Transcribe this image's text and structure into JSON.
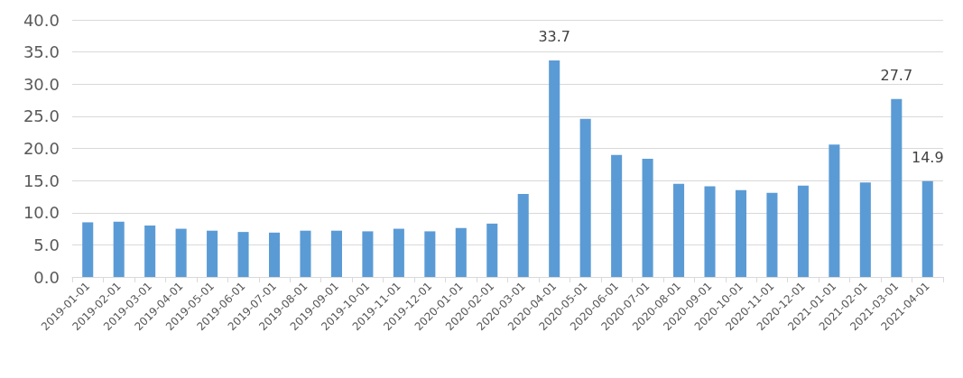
{
  "chart_data": {
    "type": "bar",
    "categories": [
      "2019-01-01",
      "2019-02-01",
      "2019-03-01",
      "2019-04-01",
      "2019-05-01",
      "2019-06-01",
      "2019-07-01",
      "2019-08-01",
      "2019-09-01",
      "2019-10-01",
      "2019-11-01",
      "2019-12-01",
      "2020-01-01",
      "2020-02-01",
      "2020-03-01",
      "2020-04-01",
      "2020-05-01",
      "2020-06-01",
      "2020-07-01",
      "2020-08-01",
      "2020-09-01",
      "2020-10-01",
      "2020-11-01",
      "2020-12-01",
      "2021-01-01",
      "2021-02-01",
      "2021-03-01",
      "2021-04-01"
    ],
    "values": [
      8.5,
      8.6,
      8.0,
      7.5,
      7.2,
      7.0,
      6.9,
      7.2,
      7.2,
      7.1,
      7.5,
      7.1,
      7.6,
      8.3,
      12.9,
      33.7,
      24.6,
      19.0,
      18.4,
      14.5,
      14.1,
      13.5,
      13.1,
      14.2,
      20.6,
      14.7,
      27.7,
      14.9
    ],
    "value_labels": [
      null,
      null,
      null,
      null,
      null,
      null,
      null,
      null,
      null,
      null,
      null,
      null,
      null,
      null,
      null,
      "33.7",
      null,
      null,
      null,
      null,
      null,
      null,
      null,
      null,
      null,
      null,
      "27.7",
      "14.9"
    ],
    "color": "#5b9bd5",
    "ylim": [
      0,
      40
    ],
    "yticks": [
      {
        "value": 0,
        "label": "0.0"
      },
      {
        "value": 5,
        "label": "5.0"
      },
      {
        "value": 10,
        "label": "10.0"
      },
      {
        "value": 15,
        "label": "15.0"
      },
      {
        "value": 20,
        "label": "20.0"
      },
      {
        "value": 25,
        "label": "25.0"
      },
      {
        "value": 30,
        "label": "30.0"
      },
      {
        "value": 35,
        "label": "35.0"
      },
      {
        "value": 40,
        "label": "40.0"
      }
    ],
    "grid": "y"
  }
}
